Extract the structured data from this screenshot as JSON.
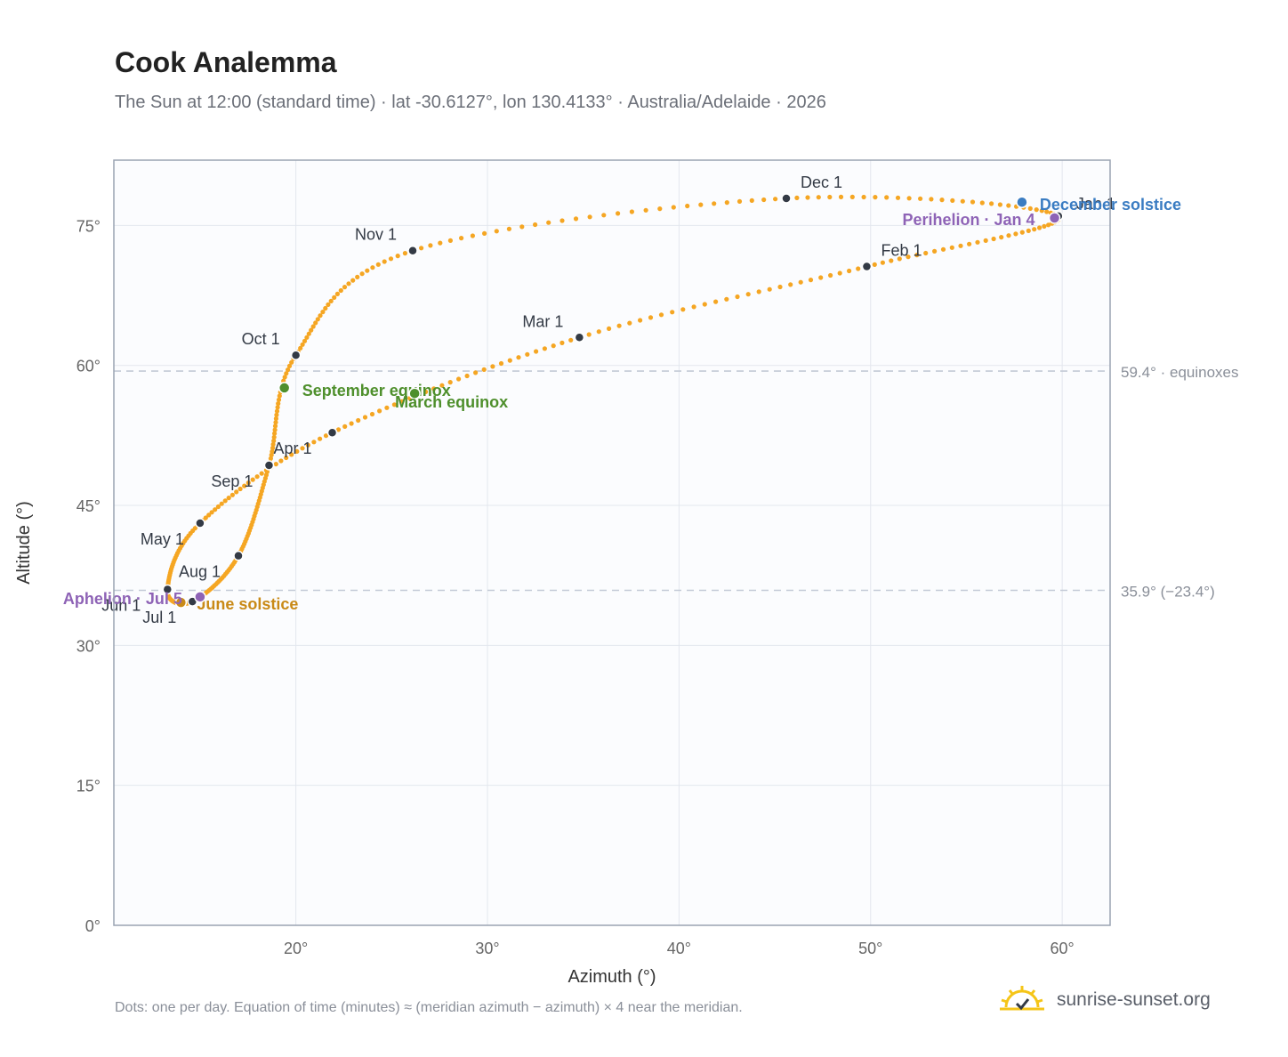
{
  "title": "Cook Analemma",
  "subtitle": "The Sun at 12:00 (standard time) · lat -30.6127°, lon 130.4133° · Australia/Adelaide · 2026",
  "footnote": "Dots: one per day. Equation of time (minutes) ≈ (meridian azimuth − azimuth) × 4 near the meridian.",
  "brand": {
    "name": "sunrise-sunset.org",
    "icon": "sunrise-logo-icon"
  },
  "colors": {
    "curve": "#f5a623",
    "month_marker": "#333a45",
    "september_equinox": "#4e8f2c",
    "march_equinox": "#4e8f2c",
    "december_solstice": "#3a7cc2",
    "june_solstice": "#c98a17",
    "perihelion": "#8e63b6",
    "aphelion": "#8e63b6",
    "reference_line": "#c3cad6",
    "plot_background": "#fbfcfe",
    "grid": "#e3e7ee"
  },
  "chart_data": {
    "type": "scatter",
    "title": "Cook Analemma",
    "xlabel": "Azimuth (°)",
    "ylabel": "Altitude (°)",
    "xlim": [
      10.5,
      62.5
    ],
    "ylim": [
      0,
      82
    ],
    "xticks": [
      20,
      30,
      40,
      50,
      60
    ],
    "yticks": [
      0,
      15,
      30,
      45,
      60,
      75
    ],
    "x_tick_labels": [
      "20°",
      "30°",
      "40°",
      "50°",
      "60°"
    ],
    "y_tick_labels": [
      "0°",
      "15°",
      "30°",
      "45°",
      "60°",
      "75°"
    ],
    "grid": true,
    "series": [
      {
        "points": [
          [
            59.8,
            76.0
          ],
          [
            49.8,
            70.6
          ],
          [
            34.8,
            63.0
          ],
          [
            21.9,
            52.8
          ],
          [
            15.0,
            43.1
          ],
          [
            13.3,
            36.0
          ],
          [
            14.6,
            34.7
          ],
          [
            17.0,
            39.6
          ],
          [
            18.6,
            49.3
          ],
          [
            20.0,
            61.1
          ],
          [
            26.1,
            72.3
          ],
          [
            45.6,
            77.9
          ],
          [
            59.8,
            76.0
          ]
        ]
      }
    ],
    "month_markers": [
      {
        "label": "Jan 1",
        "x": 59.8,
        "y": 76.0
      },
      {
        "label": "Feb 1",
        "x": 49.8,
        "y": 70.6
      },
      {
        "label": "Mar 1",
        "x": 34.8,
        "y": 63.0
      },
      {
        "label": "Apr 1",
        "x": 21.9,
        "y": 52.8
      },
      {
        "label": "May 1",
        "x": 15.0,
        "y": 43.1
      },
      {
        "label": "Jun 1",
        "x": 13.3,
        "y": 36.0
      },
      {
        "label": "Jul 1",
        "x": 14.6,
        "y": 34.7
      },
      {
        "label": "Aug 1",
        "x": 17.0,
        "y": 39.6
      },
      {
        "label": "Sep 1",
        "x": 18.6,
        "y": 49.3
      },
      {
        "label": "Oct 1",
        "x": 20.0,
        "y": 61.1
      },
      {
        "label": "Nov 1",
        "x": 26.1,
        "y": 72.3
      },
      {
        "label": "Dec 1",
        "x": 45.6,
        "y": 77.9
      }
    ],
    "events": [
      {
        "label": "September equinox",
        "x": 19.4,
        "y": 57.6,
        "color": "#4e8f2c"
      },
      {
        "label": "March equinox",
        "x": 26.2,
        "y": 57.0,
        "color": "#4e8f2c"
      },
      {
        "label": "December solstice",
        "x": 57.9,
        "y": 77.5,
        "color": "#3a7cc2"
      },
      {
        "label": "Perihelion · Jan 4",
        "x": 59.6,
        "y": 75.8,
        "color": "#8e63b6"
      },
      {
        "label": "June solstice",
        "x": 14.0,
        "y": 34.6,
        "color": "#c98a17"
      },
      {
        "label": "Aphelion · Jul 5",
        "x": 15.0,
        "y": 35.2,
        "color": "#8e63b6"
      }
    ],
    "reference_lines": [
      {
        "y": 59.4,
        "label": "59.4° · equinoxes"
      },
      {
        "y": 35.9,
        "label": "35.9° (−23.4°)"
      }
    ]
  }
}
